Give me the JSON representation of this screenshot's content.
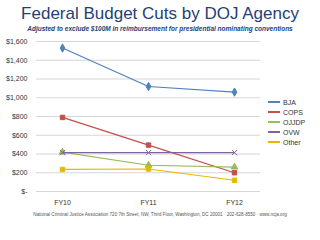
{
  "chart_data": {
    "type": "line",
    "title": "Federal Budget Cuts by DOJ Agency",
    "subtitle": "Adjusted to exclude $100M in reimbursement for presidential nominating conventions",
    "footer": "National Criminal Justice Association  720 7th Street, NW, Third Floor, Washington, DC 20001 · 202-628-8550 · www.ncja.org",
    "categories": [
      "FY10",
      "FY11",
      "FY12"
    ],
    "series": [
      {
        "name": "BJA",
        "color": "#4F81BD",
        "marker": "diamond",
        "values": [
          1530,
          1120,
          1060
        ]
      },
      {
        "name": "COPS",
        "color": "#C0504D",
        "marker": "square",
        "values": [
          790,
          495,
          200
        ]
      },
      {
        "name": "OJJDP",
        "color": "#9BBB59",
        "marker": "triangle",
        "values": [
          420,
          280,
          260
        ]
      },
      {
        "name": "OVW",
        "color": "#8064A2",
        "marker": "times",
        "values": [
          415,
          415,
          415
        ]
      },
      {
        "name": "Other",
        "color": "#E8B800",
        "marker": "square",
        "values": [
          235,
          240,
          120
        ]
      }
    ],
    "ylim": [
      0,
      1600
    ],
    "yticks": [
      {
        "value": 0,
        "label": "$-"
      },
      {
        "value": 200,
        "label": "$200"
      },
      {
        "value": 400,
        "label": "$400"
      },
      {
        "value": 600,
        "label": "$600"
      },
      {
        "value": 800,
        "label": "$800"
      },
      {
        "value": 1000,
        "label": "$1,000"
      },
      {
        "value": 1200,
        "label": "$1,200"
      },
      {
        "value": 1400,
        "label": "$1,400"
      },
      {
        "value": 1600,
        "label": "$1,600"
      }
    ],
    "grid": true,
    "legend": "right"
  }
}
